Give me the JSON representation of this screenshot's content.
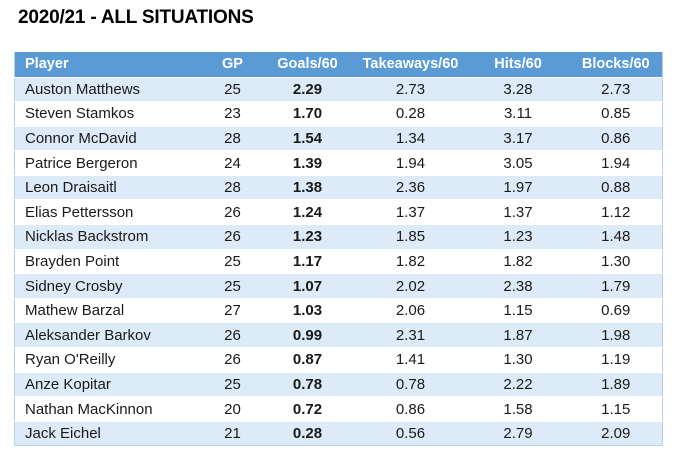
{
  "title": "2020/21 - ALL SITUATIONS",
  "chart_data": {
    "type": "table",
    "title": "2020/21 - ALL SITUATIONS",
    "columns": [
      "Player",
      "GP",
      "Goals/60",
      "Takeaways/60",
      "Hits/60",
      "Blocks/60"
    ],
    "rows": [
      [
        "Auston Matthews",
        "25",
        "2.29",
        "2.73",
        "3.28",
        "2.73"
      ],
      [
        "Steven Stamkos",
        "23",
        "1.70",
        "0.28",
        "3.11",
        "0.85"
      ],
      [
        "Connor McDavid",
        "28",
        "1.54",
        "1.34",
        "3.17",
        "0.86"
      ],
      [
        "Patrice Bergeron",
        "24",
        "1.39",
        "1.94",
        "3.05",
        "1.94"
      ],
      [
        "Leon Draisaitl",
        "28",
        "1.38",
        "2.36",
        "1.97",
        "0.88"
      ],
      [
        "Elias Pettersson",
        "26",
        "1.24",
        "1.37",
        "1.37",
        "1.12"
      ],
      [
        "Nicklas Backstrom",
        "26",
        "1.23",
        "1.85",
        "1.23",
        "1.48"
      ],
      [
        "Brayden Point",
        "25",
        "1.17",
        "1.82",
        "1.82",
        "1.30"
      ],
      [
        "Sidney Crosby",
        "25",
        "1.07",
        "2.02",
        "2.38",
        "1.79"
      ],
      [
        "Mathew Barzal",
        "27",
        "1.03",
        "2.06",
        "1.15",
        "0.69"
      ],
      [
        "Aleksander Barkov",
        "26",
        "0.99",
        "2.31",
        "1.87",
        "1.98"
      ],
      [
        "Ryan O'Reilly",
        "26",
        "0.87",
        "1.41",
        "1.30",
        "1.19"
      ],
      [
        "Anze Kopitar",
        "25",
        "0.78",
        "0.78",
        "2.22",
        "1.89"
      ],
      [
        "Nathan MacKinnon",
        "20",
        "0.72",
        "0.86",
        "1.58",
        "1.15"
      ],
      [
        "Jack Eichel",
        "21",
        "0.28",
        "0.56",
        "2.79",
        "2.09"
      ]
    ],
    "layout_hints": {
      "banded_rows": true,
      "bold_column": "Goals/60",
      "sorted_by": "Goals/60 descending"
    }
  },
  "colors": {
    "header_bg": "#5b9bd5",
    "band_row_bg": "#dcebf7",
    "plain_row_bg": "#ffffff",
    "header_text": "#ffffff",
    "body_text": "#1a1a1a",
    "table_border": "#b7d0ea",
    "title_text": "#000000"
  }
}
